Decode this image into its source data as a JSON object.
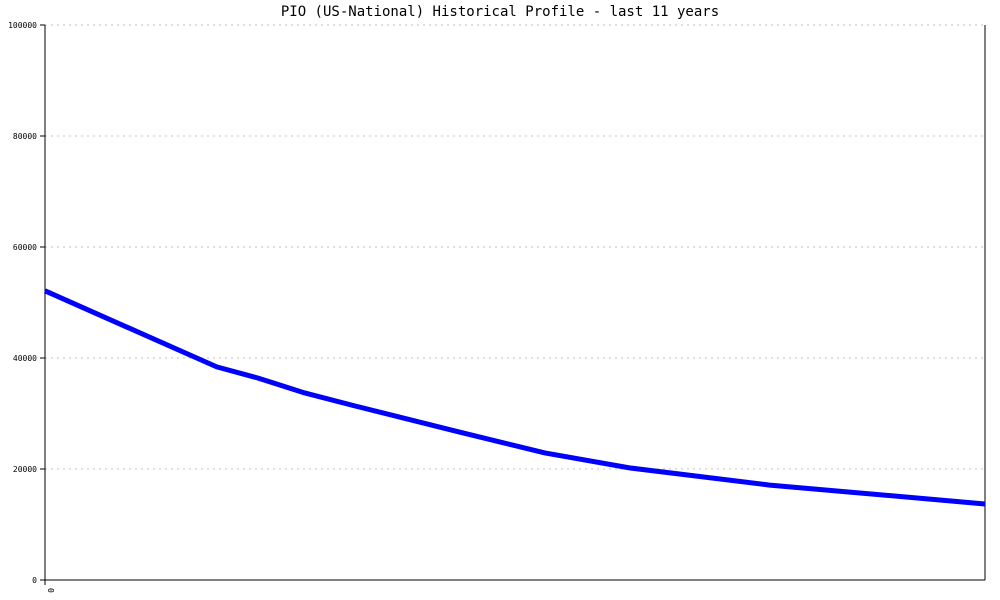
{
  "chart_data": {
    "type": "line",
    "title": "PIO (US-National) Historical Profile - last 11 years",
    "xlabel": "",
    "ylabel": "",
    "ylim": [
      0,
      100000
    ],
    "xlim": [
      0,
      11
    ],
    "x_tick_labels": [
      "0"
    ],
    "y_tick_labels": [
      "0",
      "20000",
      "40000",
      "60000",
      "80000",
      "100000"
    ],
    "y_ticks": [
      0,
      20000,
      40000,
      60000,
      80000,
      100000
    ],
    "grid": true,
    "legend": "none",
    "series": [
      {
        "color": "#0000ff",
        "x": [
          0,
          2.01,
          2.49,
          3.04,
          3.63,
          4.85,
          5.85,
          6.84,
          8.48,
          11
        ],
        "values": [
          52100,
          38400,
          36400,
          33700,
          31350,
          26650,
          22900,
          20200,
          17100,
          13700
        ]
      }
    ]
  }
}
